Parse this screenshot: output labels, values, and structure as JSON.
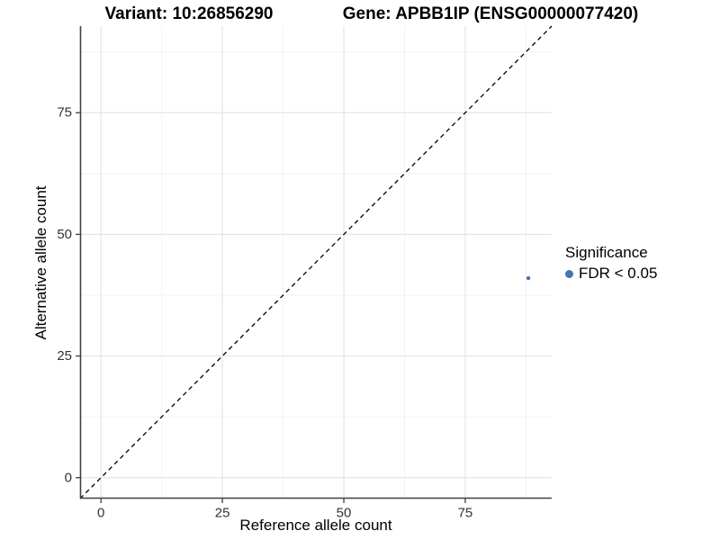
{
  "chart_data": {
    "type": "scatter",
    "titles": {
      "variant": "Variant: 10:26856290",
      "gene": "Gene: APBB1IP (ENSG00000077420)"
    },
    "xlabel": "Reference allele count",
    "ylabel": "Alternative allele count",
    "xlim": [
      -4.3,
      92.8
    ],
    "ylim": [
      -4.3,
      92.8
    ],
    "xticks": [
      0,
      25,
      50,
      75
    ],
    "yticks": [
      0,
      25,
      50,
      75
    ],
    "xticks_minor": [
      12.5,
      37.5,
      62.5,
      87.5
    ],
    "yticks_minor": [
      12.5,
      37.5,
      62.5,
      87.5
    ],
    "grid": {
      "major_color": "#e5e5e5",
      "minor_color": "#f2f2f2"
    },
    "axis_color": "#404040",
    "tick_label_color": "#333333",
    "identity_line": {
      "slope": 1,
      "intercept": 0,
      "style": "dashed",
      "color": "#000000"
    },
    "series": [
      {
        "name": "FDR < 0.05",
        "color": "#4575b4",
        "points": [
          {
            "x": 88,
            "y": 41
          }
        ]
      }
    ],
    "legend": {
      "title": "Significance",
      "position": "right",
      "items": [
        {
          "label": "FDR < 0.05",
          "color": "#4575b4"
        }
      ]
    }
  }
}
